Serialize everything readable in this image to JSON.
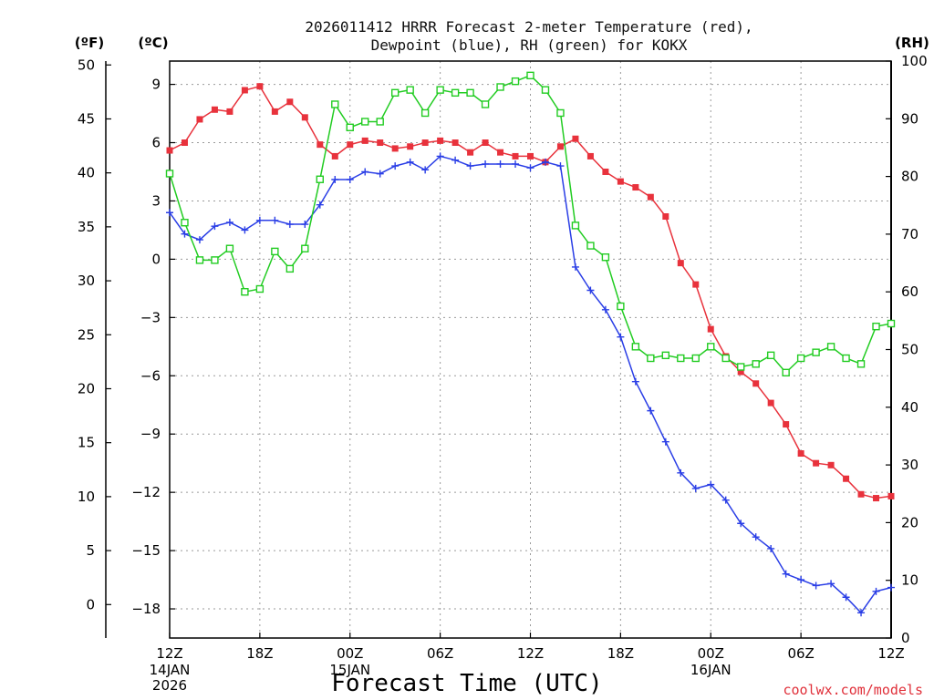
{
  "chart_data": {
    "type": "line",
    "title_line1": "2026011412 HRRR Forecast 2-meter Temperature (red),",
    "title_line2": "Dewpoint (blue), RH (green) for KOKX",
    "xlabel": "Forecast Time (UTC)",
    "credit": "coolwx.com/models",
    "unit_f": "(ºF)",
    "unit_c": "(ºC)",
    "unit_rh": "(RH)",
    "x_ticks": [
      "12Z",
      "18Z",
      "00Z",
      "06Z",
      "12Z",
      "18Z",
      "00Z",
      "06Z",
      "12Z"
    ],
    "date_labels": [
      {
        "hour": 0,
        "line1": "14JAN",
        "line2": "2026"
      },
      {
        "hour": 12,
        "line1": "15JAN",
        "line2": ""
      },
      {
        "hour": 36,
        "line1": "16JAN",
        "line2": ""
      }
    ],
    "x_range_hours": [
      0,
      48
    ],
    "y_left_celsius": {
      "min": -19.5,
      "max": 10.2,
      "ticks": [
        9,
        6,
        3,
        0,
        -3,
        -6,
        -9,
        -12,
        -15,
        -18
      ],
      "tick_labels": [
        "9",
        "6",
        "3",
        "0",
        "−3",
        "−6",
        "−9",
        "−12",
        "−15",
        "−18"
      ]
    },
    "y_left_fahrenheit": {
      "ticks": [
        50,
        45,
        40,
        35,
        30,
        25,
        20,
        15,
        10,
        5,
        0
      ],
      "tick_labels": [
        "50",
        "45",
        "40",
        "35",
        "30",
        "25",
        "20",
        "15",
        "10",
        "5",
        "0"
      ]
    },
    "y_right_rh": {
      "min": 0,
      "max": 100,
      "ticks": [
        100,
        90,
        80,
        70,
        60,
        50,
        40,
        30,
        20,
        10,
        0
      ],
      "tick_labels": [
        "100",
        "90",
        "80",
        "70",
        "60",
        "50",
        "40",
        "30",
        "20",
        "10",
        "0"
      ]
    },
    "series": [
      {
        "name": "Temperature (°C)",
        "color": "#e8323c",
        "marker": "filled-square",
        "values": [
          5.6,
          6.0,
          7.2,
          7.7,
          7.6,
          8.7,
          8.9,
          7.6,
          8.1,
          7.3,
          5.9,
          5.3,
          5.9,
          6.1,
          6.0,
          5.7,
          5.8,
          6.0,
          6.1,
          6.0,
          5.5,
          6.0,
          5.5,
          5.3,
          5.3,
          5.0,
          5.8,
          6.2,
          5.3,
          4.5,
          4.0,
          3.7,
          3.2,
          2.2,
          -0.2,
          -1.3,
          -3.6,
          -5.0,
          -5.8,
          -6.4,
          -7.4,
          -8.5,
          -10.0,
          -10.5,
          -10.6,
          -11.3,
          -12.1,
          -12.3,
          -12.2
        ]
      },
      {
        "name": "Dewpoint (°C)",
        "color": "#2a3ee6",
        "marker": "plus",
        "values": [
          2.4,
          1.3,
          1.0,
          1.7,
          1.9,
          1.5,
          2.0,
          2.0,
          1.8,
          1.8,
          2.8,
          4.1,
          4.1,
          4.5,
          4.4,
          4.8,
          5.0,
          4.6,
          5.3,
          5.1,
          4.8,
          4.9,
          4.9,
          4.9,
          4.7,
          5.0,
          4.8,
          -0.4,
          -1.6,
          -2.6,
          -4.0,
          -6.3,
          -7.8,
          -9.4,
          -11.0,
          -11.8,
          -11.6,
          -12.4,
          -13.6,
          -14.3,
          -14.9,
          -16.2,
          -16.5,
          -16.8,
          -16.7,
          -17.4,
          -18.2,
          -17.1,
          -16.9
        ]
      },
      {
        "name": "RH (%)",
        "color": "#22cc22",
        "marker": "open-square",
        "values": [
          80.5,
          72.0,
          65.5,
          65.5,
          67.5,
          60.0,
          60.5,
          67.0,
          64.0,
          67.5,
          79.5,
          92.5,
          88.5,
          89.5,
          89.5,
          94.5,
          95.0,
          91.0,
          95.0,
          94.5,
          94.5,
          92.5,
          95.5,
          96.5,
          97.5,
          95.0,
          91.0,
          71.5,
          68.0,
          66.0,
          57.5,
          50.5,
          48.5,
          49.0,
          48.5,
          48.5,
          50.5,
          48.5,
          47.0,
          47.5,
          49.0,
          46.0,
          48.5,
          49.5,
          50.5,
          48.5,
          47.5,
          54.0,
          54.5
        ]
      }
    ]
  }
}
